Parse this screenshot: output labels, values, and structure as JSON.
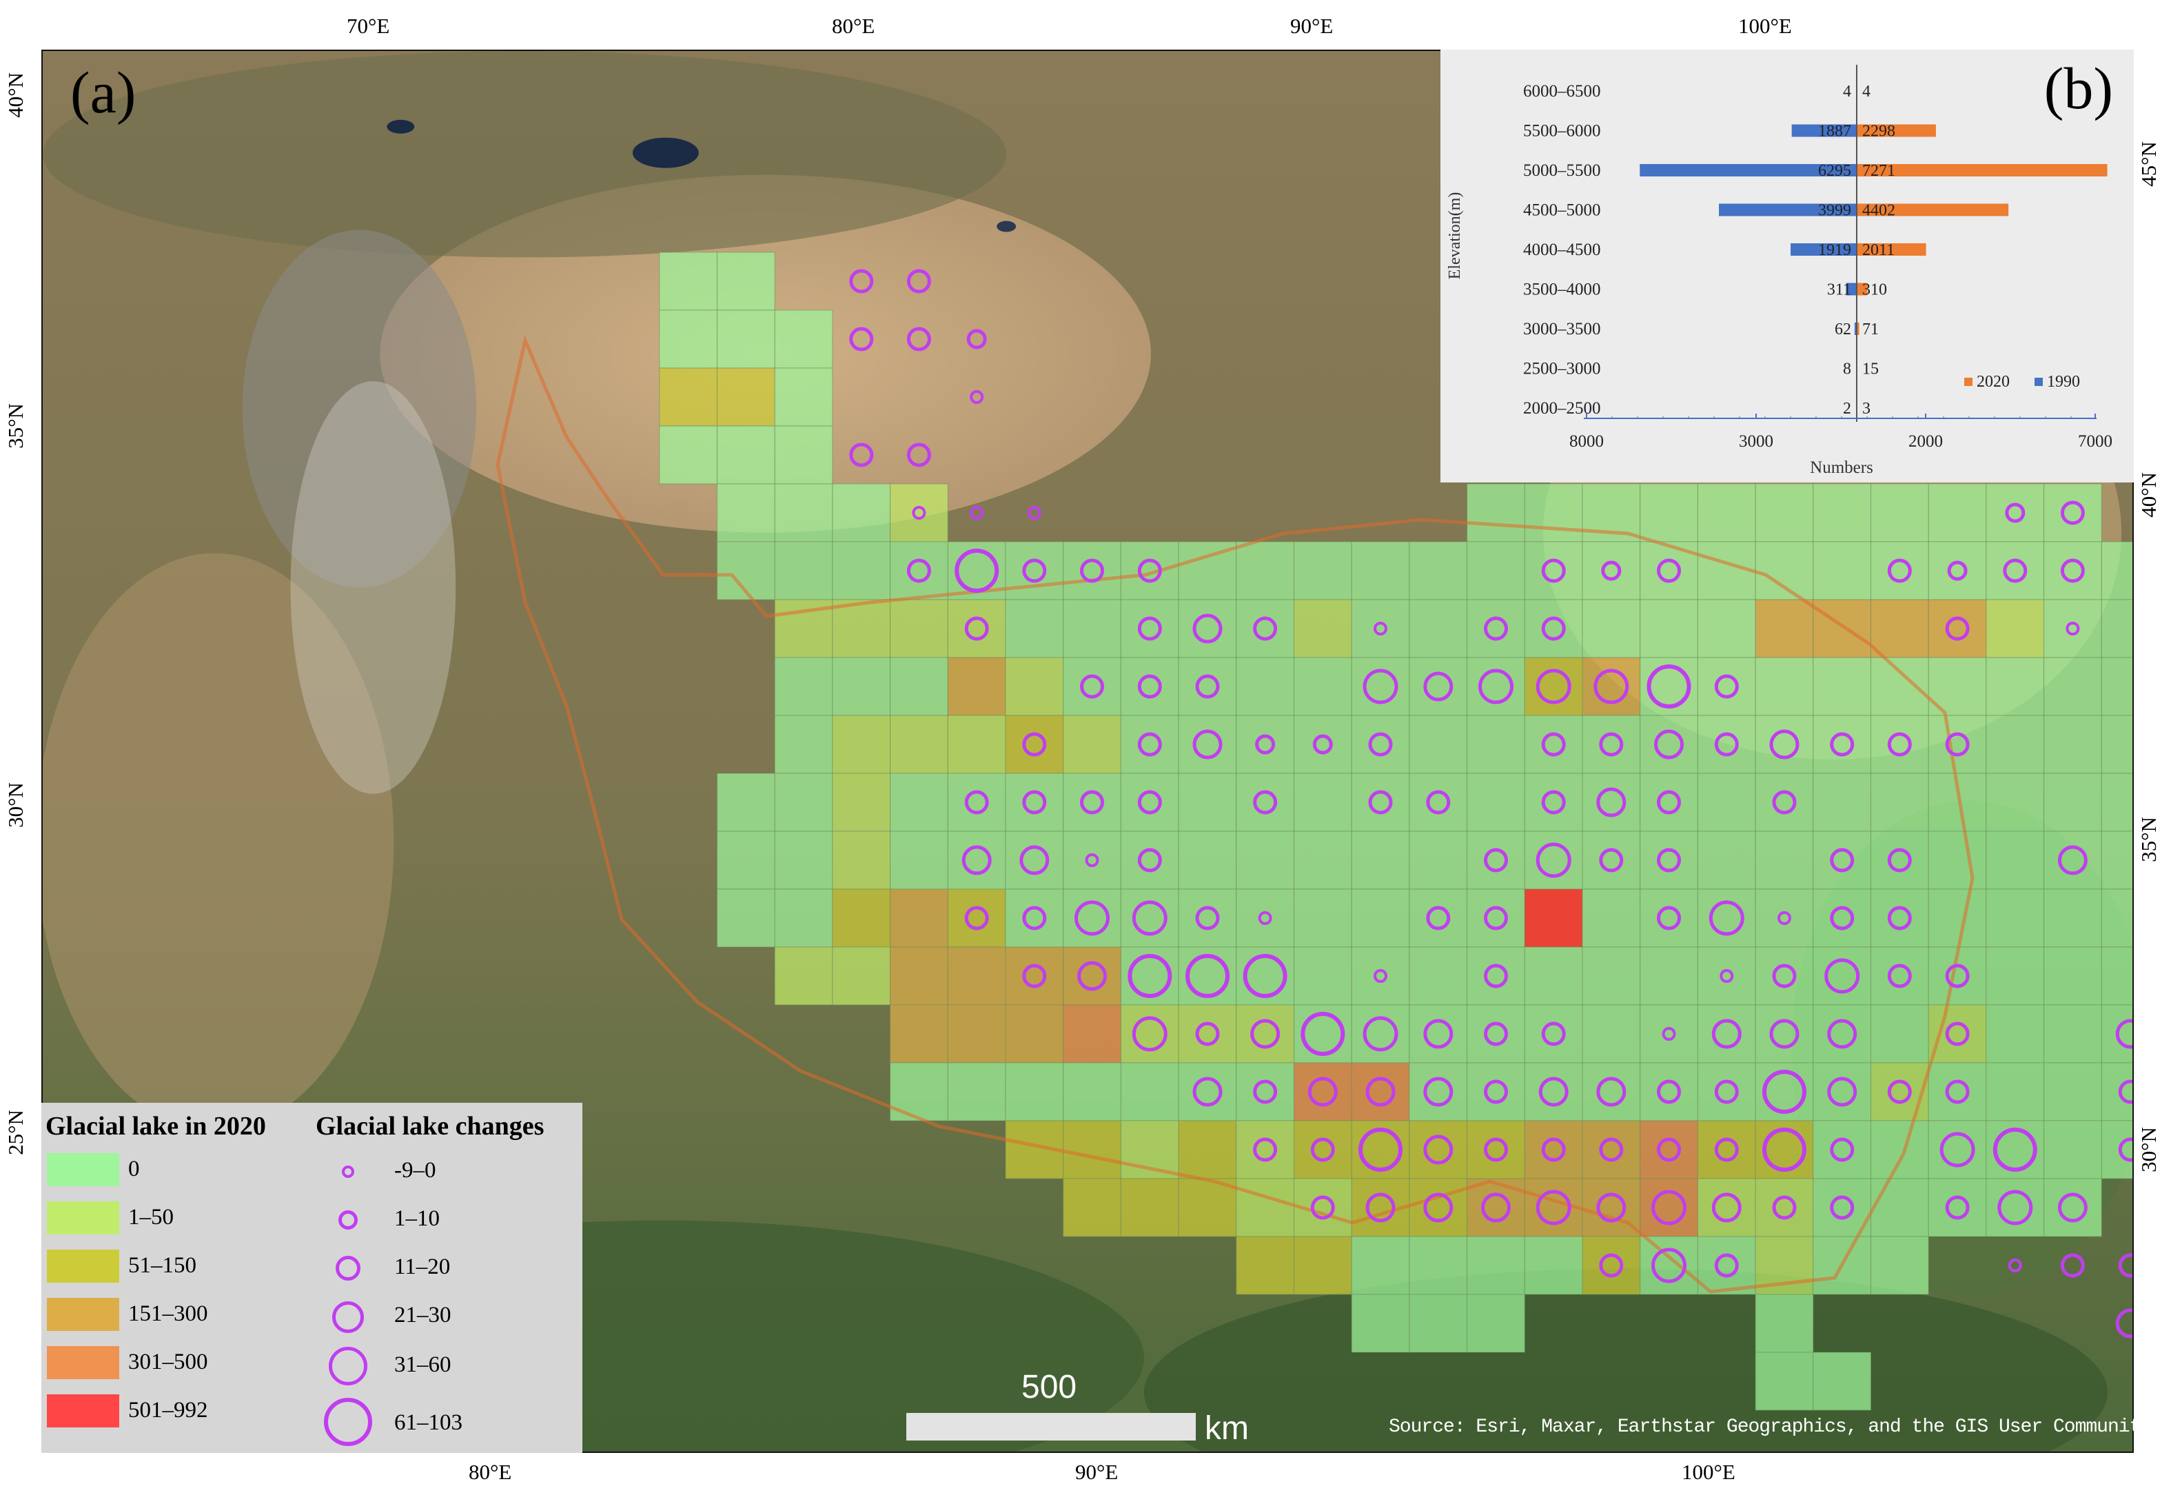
{
  "panel_a_label": "(a)",
  "panel_b_label": "(b)",
  "axes": {
    "top_lon": [
      "70°E",
      "80°E",
      "90°E",
      "100°E"
    ],
    "bottom_lon": [
      "80°E",
      "90°E",
      "100°E"
    ],
    "left_lat": [
      "40°N",
      "35°N",
      "30°N",
      "25°N"
    ],
    "right_lat": [
      "45°N",
      "40°N",
      "35°N",
      "30°N"
    ]
  },
  "legend": {
    "title_lakes": "Glacial lake in 2020",
    "title_changes": "Glacial lake changes",
    "classes": [
      {
        "label": "0",
        "color": "#9ef59a"
      },
      {
        "label": "1–50",
        "color": "#c0ec6a"
      },
      {
        "label": "51–150",
        "color": "#cccc38"
      },
      {
        "label": "151–300",
        "color": "#ddae48"
      },
      {
        "label": "301–500",
        "color": "#f09250"
      },
      {
        "label": "501–992",
        "color": "#ff4545"
      }
    ],
    "changes": [
      {
        "label": "-9–0",
        "level": 1
      },
      {
        "label": "1–10",
        "level": 2
      },
      {
        "label": "11–20",
        "level": 3
      },
      {
        "label": "21–30",
        "level": 4
      },
      {
        "label": "31–60",
        "level": 5
      },
      {
        "label": "61–103",
        "level": 6
      }
    ],
    "circle_color": "#c13ef0"
  },
  "scalebar": {
    "value": "500",
    "unit": "km"
  },
  "source": "Source: Esri, Maxar, Earthstar Geographics, and the GIS User Community",
  "grid_map": {
    "class_colors": [
      "#9ef59a",
      "#c0ec6a",
      "#cccc38",
      "#ddae48",
      "#f09250",
      "#ff3a30"
    ],
    "rows": [
      "....00........................",
      "....000.......................",
      "....220.......................",
      "....000.......................",
      ".....0001.........00000000000.",
      ".....00000000000000000000000000..",
      "......111100000100000003333100..",
      "......00031000000002300000000000",
      "......011121000000000000000000..",
      ".....001000000000000000000000000",
      ".....0010000000000000000000000000",
      ".....00232000000000500000000000",
      "......11333300000000000000000000",
      "........33341110000000000010000",
      "........00000004400000000100000",
      "..........22121222233422000000",
      "...........222112233341100000",
      "..............220000200100....",
      "................000....0......",
      ".......................00....."
    ],
    "circles": [
      [
        0,
        7,
        3
      ],
      [
        0,
        8,
        3
      ],
      [
        1,
        7,
        3
      ],
      [
        1,
        8,
        3
      ],
      [
        1,
        9,
        2
      ],
      [
        2,
        9,
        1
      ],
      [
        3,
        7,
        3
      ],
      [
        3,
        8,
        3
      ],
      [
        4,
        8,
        1
      ],
      [
        4,
        9,
        1
      ],
      [
        4,
        10,
        1
      ],
      [
        4,
        27,
        2
      ],
      [
        4,
        28,
        3
      ],
      [
        5,
        8,
        3
      ],
      [
        5,
        9,
        6
      ],
      [
        5,
        10,
        3
      ],
      [
        5,
        11,
        3
      ],
      [
        5,
        12,
        3
      ],
      [
        5,
        19,
        3
      ],
      [
        5,
        20,
        2
      ],
      [
        5,
        21,
        3
      ],
      [
        5,
        25,
        3
      ],
      [
        5,
        26,
        2
      ],
      [
        5,
        27,
        3
      ],
      [
        5,
        28,
        3
      ],
      [
        6,
        9,
        3
      ],
      [
        6,
        12,
        3
      ],
      [
        6,
        13,
        4
      ],
      [
        6,
        14,
        3
      ],
      [
        6,
        16,
        1
      ],
      [
        6,
        18,
        3
      ],
      [
        6,
        19,
        3
      ],
      [
        6,
        26,
        3
      ],
      [
        6,
        28,
        1
      ],
      [
        6,
        30,
        1
      ],
      [
        6,
        31,
        3
      ],
      [
        7,
        11,
        3
      ],
      [
        7,
        12,
        3
      ],
      [
        7,
        13,
        3
      ],
      [
        7,
        16,
        5
      ],
      [
        7,
        17,
        4
      ],
      [
        7,
        18,
        5
      ],
      [
        7,
        19,
        5
      ],
      [
        7,
        20,
        5
      ],
      [
        7,
        21,
        6
      ],
      [
        7,
        22,
        3
      ],
      [
        8,
        10,
        3
      ],
      [
        8,
        12,
        3
      ],
      [
        8,
        13,
        4
      ],
      [
        8,
        14,
        2
      ],
      [
        8,
        15,
        2
      ],
      [
        8,
        16,
        3
      ],
      [
        8,
        19,
        3
      ],
      [
        8,
        20,
        3
      ],
      [
        8,
        21,
        4
      ],
      [
        8,
        22,
        3
      ],
      [
        8,
        23,
        4
      ],
      [
        8,
        24,
        3
      ],
      [
        8,
        25,
        3
      ],
      [
        8,
        26,
        3
      ],
      [
        9,
        9,
        3
      ],
      [
        9,
        10,
        3
      ],
      [
        9,
        11,
        3
      ],
      [
        9,
        12,
        3
      ],
      [
        9,
        14,
        3
      ],
      [
        9,
        16,
        3
      ],
      [
        9,
        17,
        3
      ],
      [
        9,
        19,
        3
      ],
      [
        9,
        20,
        4
      ],
      [
        9,
        21,
        3
      ],
      [
        9,
        23,
        3
      ],
      [
        10,
        9,
        4
      ],
      [
        10,
        10,
        4
      ],
      [
        10,
        11,
        1
      ],
      [
        10,
        12,
        3
      ],
      [
        10,
        18,
        3
      ],
      [
        10,
        19,
        5
      ],
      [
        10,
        20,
        3
      ],
      [
        10,
        21,
        3
      ],
      [
        10,
        24,
        3
      ],
      [
        10,
        25,
        3
      ],
      [
        10,
        28,
        4
      ],
      [
        11,
        9,
        3
      ],
      [
        11,
        10,
        3
      ],
      [
        11,
        11,
        5
      ],
      [
        11,
        12,
        5
      ],
      [
        11,
        13,
        3
      ],
      [
        11,
        14,
        1
      ],
      [
        11,
        17,
        3
      ],
      [
        11,
        18,
        3
      ],
      [
        11,
        21,
        3
      ],
      [
        11,
        22,
        5
      ],
      [
        11,
        23,
        1
      ],
      [
        11,
        24,
        3
      ],
      [
        11,
        25,
        3
      ],
      [
        12,
        10,
        3
      ],
      [
        12,
        11,
        4
      ],
      [
        12,
        12,
        6
      ],
      [
        12,
        13,
        6
      ],
      [
        12,
        14,
        6
      ],
      [
        12,
        16,
        1
      ],
      [
        12,
        18,
        3
      ],
      [
        12,
        22,
        1
      ],
      [
        12,
        23,
        3
      ],
      [
        12,
        24,
        5
      ],
      [
        12,
        25,
        3
      ],
      [
        12,
        26,
        3
      ],
      [
        12,
        31,
        3
      ],
      [
        12,
        32,
        2
      ],
      [
        13,
        12,
        5
      ],
      [
        13,
        13,
        3
      ],
      [
        13,
        14,
        4
      ],
      [
        13,
        15,
        6
      ],
      [
        13,
        16,
        5
      ],
      [
        13,
        17,
        4
      ],
      [
        13,
        18,
        3
      ],
      [
        13,
        19,
        3
      ],
      [
        13,
        21,
        1
      ],
      [
        13,
        22,
        4
      ],
      [
        13,
        23,
        4
      ],
      [
        13,
        24,
        4
      ],
      [
        13,
        26,
        3
      ],
      [
        13,
        29,
        4
      ],
      [
        13,
        30,
        3
      ],
      [
        13,
        31,
        3
      ],
      [
        13,
        32,
        2
      ],
      [
        14,
        13,
        4
      ],
      [
        14,
        14,
        3
      ],
      [
        14,
        15,
        4
      ],
      [
        14,
        16,
        4
      ],
      [
        14,
        17,
        4
      ],
      [
        14,
        18,
        3
      ],
      [
        14,
        19,
        4
      ],
      [
        14,
        20,
        4
      ],
      [
        14,
        21,
        3
      ],
      [
        14,
        22,
        3
      ],
      [
        14,
        23,
        6
      ],
      [
        14,
        24,
        4
      ],
      [
        14,
        25,
        3
      ],
      [
        14,
        26,
        3
      ],
      [
        14,
        29,
        3
      ],
      [
        14,
        31,
        1
      ],
      [
        14,
        32,
        2
      ],
      [
        15,
        14,
        3
      ],
      [
        15,
        15,
        3
      ],
      [
        15,
        16,
        6
      ],
      [
        15,
        17,
        4
      ],
      [
        15,
        18,
        3
      ],
      [
        15,
        19,
        3
      ],
      [
        15,
        20,
        3
      ],
      [
        15,
        21,
        3
      ],
      [
        15,
        22,
        3
      ],
      [
        15,
        23,
        6
      ],
      [
        15,
        24,
        3
      ],
      [
        15,
        26,
        5
      ],
      [
        15,
        27,
        6
      ],
      [
        15,
        29,
        3
      ],
      [
        15,
        30,
        4
      ],
      [
        15,
        31,
        3
      ],
      [
        16,
        15,
        3
      ],
      [
        16,
        16,
        4
      ],
      [
        16,
        17,
        4
      ],
      [
        16,
        18,
        4
      ],
      [
        16,
        19,
        5
      ],
      [
        16,
        20,
        4
      ],
      [
        16,
        21,
        5
      ],
      [
        16,
        22,
        4
      ],
      [
        16,
        23,
        3
      ],
      [
        16,
        24,
        3
      ],
      [
        16,
        26,
        3
      ],
      [
        16,
        27,
        5
      ],
      [
        16,
        28,
        4
      ],
      [
        16,
        30,
        3
      ],
      [
        17,
        20,
        3
      ],
      [
        17,
        21,
        5
      ],
      [
        17,
        22,
        3
      ],
      [
        17,
        27,
        1
      ],
      [
        17,
        28,
        3
      ],
      [
        17,
        29,
        3
      ],
      [
        17,
        30,
        3
      ],
      [
        18,
        29,
        4
      ]
    ]
  },
  "chart_data": {
    "type": "bar",
    "title": "",
    "xlabel": "Numbers",
    "ylabel": "Elevation(m)",
    "categories": [
      "6000–6500",
      "5500–6000",
      "5000–5500",
      "4500–5000",
      "4000–4500",
      "3500–4000",
      "3000–3500",
      "2500–3000",
      "2000–2500"
    ],
    "series": [
      {
        "name": "1990",
        "color": "#4472c4",
        "values": [
          4,
          1887,
          6295,
          3999,
          1919,
          311,
          62,
          8,
          2
        ]
      },
      {
        "name": "2020",
        "color": "#ed7d31",
        "values": [
          4,
          2298,
          7271,
          4402,
          2011,
          310,
          71,
          15,
          3
        ]
      }
    ],
    "xticks": [
      "8000",
      "3000",
      "2000",
      "7000"
    ],
    "legend_position": "bottom-right"
  }
}
